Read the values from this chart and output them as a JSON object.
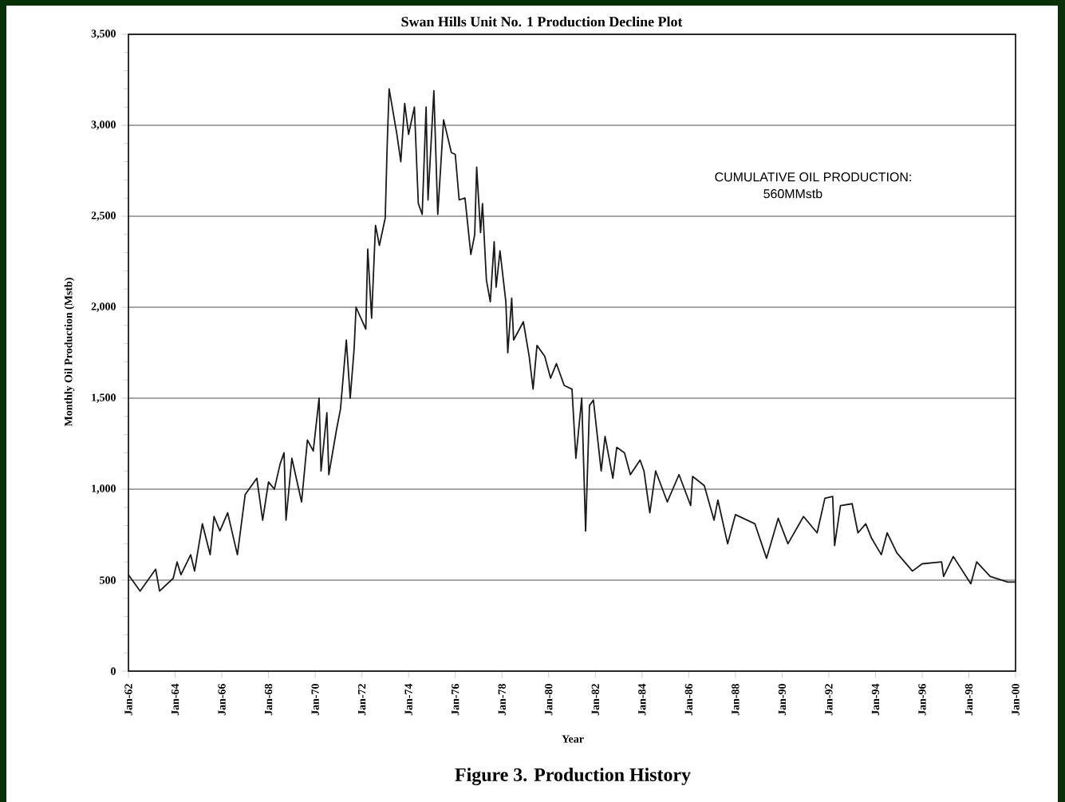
{
  "chart_data": {
    "type": "line",
    "title": "Swan Hills Unit No. 1 Production Decline Plot",
    "xlabel": "Year",
    "ylabel": "Monthly Oil Production (Mstb)",
    "annotations": [
      "CUMULATIVE OIL PRODUCTION:",
      "560MMstb",
      "Figure 3. Production History"
    ],
    "xlim": [
      "1962-01",
      "2000-01"
    ],
    "ylim": [
      0,
      3500
    ],
    "xticks": [
      {
        "value": "1962-01",
        "label": "Jan-62"
      },
      {
        "value": "1964-01",
        "label": "Jan-64"
      },
      {
        "value": "1966-01",
        "label": "Jan-66"
      },
      {
        "value": "1968-01",
        "label": "Jan-68"
      },
      {
        "value": "1970-01",
        "label": "Jan-70"
      },
      {
        "value": "1972-01",
        "label": "Jan-72"
      },
      {
        "value": "1974-01",
        "label": "Jan-74"
      },
      {
        "value": "1976-01",
        "label": "Jan-76"
      },
      {
        "value": "1978-01",
        "label": "Jan-78"
      },
      {
        "value": "1980-01",
        "label": "Jan-80"
      },
      {
        "value": "1982-01",
        "label": "Jan-82"
      },
      {
        "value": "1984-01",
        "label": "Jan-84"
      },
      {
        "value": "1986-01",
        "label": "Jan-86"
      },
      {
        "value": "1988-01",
        "label": "Jan-88"
      },
      {
        "value": "1990-01",
        "label": "Jan-90"
      },
      {
        "value": "1992-01",
        "label": "Jan-92"
      },
      {
        "value": "1994-01",
        "label": "Jan-94"
      },
      {
        "value": "1996-01",
        "label": "Jan-96"
      },
      {
        "value": "1998-01",
        "label": "Jan-98"
      },
      {
        "value": "2000-01",
        "label": "Jan-00"
      }
    ],
    "yticks": [
      0,
      500,
      {
        "value": 1000,
        "label": "1,000"
      },
      {
        "value": 1500,
        "label": "1,500"
      },
      {
        "value": 2000,
        "label": "2,000"
      },
      {
        "value": 2500,
        "label": "2,500"
      },
      {
        "value": 3000,
        "label": "3,000"
      },
      {
        "value": 3500,
        "label": "3,500"
      }
    ],
    "grid": "y",
    "x": [
      "1962-01",
      "1962-07",
      "1963-03",
      "1963-05",
      "1963-12",
      "1964-02",
      "1964-04",
      "1964-09",
      "1964-11",
      "1965-03",
      "1965-07",
      "1965-09",
      "1965-12",
      "1966-04",
      "1966-09",
      "1967-01",
      "1967-07",
      "1967-10",
      "1968-01",
      "1968-04",
      "1968-07",
      "1968-09",
      "1968-10",
      "1969-01",
      "1969-06",
      "1969-09",
      "1969-12",
      "1970-03",
      "1970-04",
      "1970-07",
      "1970-08",
      "1970-12",
      "1971-02",
      "1971-05",
      "1971-07",
      "1971-09",
      "1971-10",
      "1972-03",
      "1972-04",
      "1972-06",
      "1972-08",
      "1972-10",
      "1973-01",
      "1973-02",
      "1973-03",
      "1973-07",
      "1973-09",
      "1973-11",
      "1974-01",
      "1974-04",
      "1974-06",
      "1974-08",
      "1974-10",
      "1974-11",
      "1975-02",
      "1975-04",
      "1975-07",
      "1975-11",
      "1976-01",
      "1976-03",
      "1976-06",
      "1976-09",
      "1976-11",
      "1976-12",
      "1977-02",
      "1977-03",
      "1977-05",
      "1977-07",
      "1977-09",
      "1977-10",
      "1977-12",
      "1978-03",
      "1978-04",
      "1978-06",
      "1978-07",
      "1978-12",
      "1979-03",
      "1979-05",
      "1979-07",
      "1979-11",
      "1980-02",
      "1980-05",
      "1980-09",
      "1981-01",
      "1981-03",
      "1981-06",
      "1981-08",
      "1981-10",
      "1981-12",
      "1982-04",
      "1982-06",
      "1982-10",
      "1982-12",
      "1983-04",
      "1983-07",
      "1983-12",
      "1984-02",
      "1984-05",
      "1984-08",
      "1985-02",
      "1985-08",
      "1986-02",
      "1986-03",
      "1986-09",
      "1987-02",
      "1987-04",
      "1987-09",
      "1988-01",
      "1988-11",
      "1989-05",
      "1989-11",
      "1990-04",
      "1990-12",
      "1991-07",
      "1991-11",
      "1992-03",
      "1992-04",
      "1992-07",
      "1993-01",
      "1993-04",
      "1993-08",
      "1993-11",
      "1994-04",
      "1994-07",
      "1994-12",
      "1995-08",
      "1996-01",
      "1996-11",
      "1996-12",
      "1997-05",
      "1998-02",
      "1998-05",
      "1998-12",
      "1999-09",
      "2000-01"
    ],
    "series": [
      {
        "color": "#1a1a1a",
        "values": [
          530,
          440,
          560,
          440,
          510,
          600,
          530,
          640,
          550,
          810,
          640,
          850,
          770,
          870,
          640,
          970,
          1060,
          830,
          1040,
          1000,
          1140,
          1200,
          830,
          1170,
          930,
          1270,
          1210,
          1500,
          1100,
          1420,
          1080,
          1330,
          1440,
          1820,
          1500,
          1770,
          2000,
          1880,
          2320,
          1940,
          2450,
          2340,
          2490,
          2890,
          3200,
          2950,
          2800,
          3120,
          2950,
          3100,
          2570,
          2510,
          3100,
          2590,
          3190,
          2510,
          3030,
          2850,
          2840,
          2590,
          2600,
          2290,
          2400,
          2770,
          2410,
          2570,
          2150,
          2030,
          2360,
          2110,
          2310,
          2030,
          1750,
          2050,
          1820,
          1920,
          1730,
          1550,
          1790,
          1730,
          1610,
          1690,
          1570,
          1550,
          1170,
          1500,
          770,
          1460,
          1490,
          1100,
          1290,
          1060,
          1230,
          1200,
          1080,
          1160,
          1100,
          870,
          1100,
          930,
          1080,
          910,
          1070,
          1020,
          830,
          940,
          700,
          860,
          810,
          620,
          840,
          700,
          850,
          760,
          950,
          960,
          690,
          910,
          920,
          760,
          810,
          730,
          640,
          760,
          650,
          550,
          590,
          600,
          520,
          630,
          480,
          600,
          520,
          490,
          490
        ]
      }
    ]
  }
}
